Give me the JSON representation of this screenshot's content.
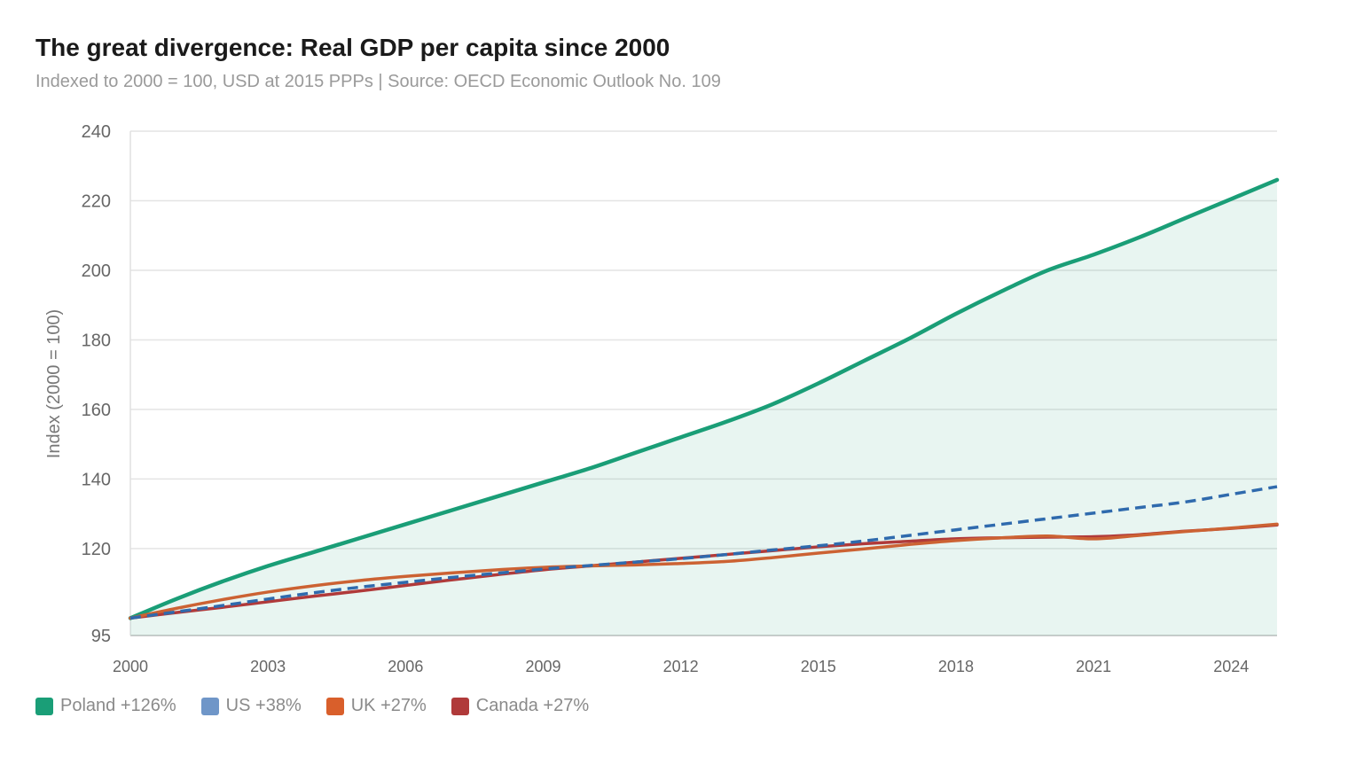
{
  "chart_data": {
    "type": "line",
    "title": "The great divergence: Real GDP per capita since 2000",
    "subtitle": "Indexed to 2000 = 100, USD at 2015 PPPs | Source: OECD Economic Outlook No. 109",
    "xlabel": "",
    "ylabel": "Index (2000 = 100)",
    "xlim": [
      2000,
      2025
    ],
    "ylim": [
      95,
      240
    ],
    "x_ticks": [
      "2000",
      "2003",
      "2006",
      "2009",
      "2012",
      "2015",
      "2018",
      "2021",
      "2024"
    ],
    "y_ticks": [
      "95",
      "120",
      "140",
      "160",
      "180",
      "200",
      "220",
      "240"
    ],
    "grid": "horizontal",
    "legend_placement": "bottom-left",
    "x": [
      2000,
      2001,
      2002,
      2003,
      2004,
      2005,
      2006,
      2007,
      2008,
      2009,
      2010,
      2011,
      2012,
      2013,
      2014,
      2015,
      2016,
      2017,
      2018,
      2019,
      2020,
      2021,
      2022,
      2023,
      2024,
      2025
    ],
    "series": [
      {
        "name": "Poland",
        "legend": "Poland +126%",
        "color": "#1a9e77",
        "swatch": "#1a9e77",
        "dashed": false,
        "fill": true,
        "values": [
          100,
          105.5,
          110.5,
          115,
          119,
          123,
          127,
          131,
          135,
          139,
          143,
          147.5,
          152,
          156.5,
          161.5,
          167.5,
          174,
          180.5,
          187.5,
          194,
          200,
          204.5,
          209.5,
          215,
          220.5,
          226
        ]
      },
      {
        "name": "Canada",
        "legend": "Canada +27%",
        "color": "#b03a3a",
        "swatch": "#b03a3a",
        "dashed": false,
        "fill": false,
        "values": [
          100,
          101.6,
          103.1,
          104.7,
          106.3,
          107.8,
          109.4,
          111,
          112.5,
          113.9,
          115,
          116.1,
          117.2,
          118.3,
          119.4,
          120.5,
          121.4,
          122.1,
          122.8,
          123.1,
          123.3,
          123.4,
          124,
          125,
          125.8,
          126.8
        ]
      },
      {
        "name": "UK",
        "legend": "UK +27%",
        "color": "#cc6233",
        "swatch": "#d95f2b",
        "dashed": false,
        "fill": false,
        "values": [
          100,
          102.8,
          105.3,
          107.5,
          109.3,
          110.8,
          112,
          113,
          113.9,
          114.6,
          115,
          115.3,
          115.7,
          116.3,
          117.4,
          118.7,
          119.9,
          121.2,
          122.3,
          123.1,
          123.6,
          122.8,
          123.8,
          124.9,
          125.9,
          127
        ]
      },
      {
        "name": "US",
        "legend": "US +38%",
        "color": "#2f6aad",
        "swatch": "#6f96c8",
        "dashed": true,
        "fill": false,
        "values": [
          100,
          101.8,
          103.6,
          105.5,
          107.3,
          108.9,
          110.3,
          111.7,
          112.9,
          114.1,
          115.1,
          116.1,
          117.1,
          118.3,
          119.6,
          120.8,
          122.2,
          123.8,
          125.4,
          127,
          128.6,
          130.2,
          131.8,
          133.4,
          135.6,
          137.8
        ]
      }
    ]
  }
}
